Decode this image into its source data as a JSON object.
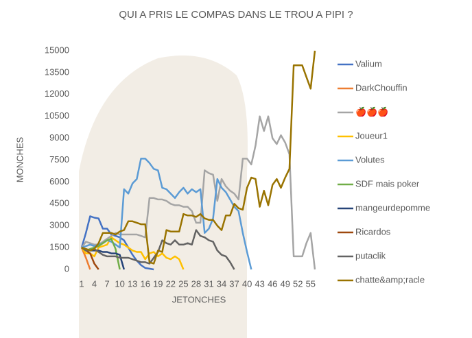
{
  "chart_data": {
    "type": "line",
    "title": "QUI A PRIS LE COMPAS DANS LE TROU A PIPI ?",
    "x_label": "JETONCHES",
    "y_label": "MONCHES",
    "categories": [
      "1",
      null,
      null,
      "4",
      null,
      null,
      "7",
      null,
      null,
      "10",
      null,
      null,
      "13",
      null,
      null,
      "16",
      null,
      null,
      "19",
      null,
      null,
      "22",
      null,
      null,
      "25",
      null,
      null,
      "28",
      null,
      null,
      "31",
      null,
      null,
      "34",
      null,
      null,
      "37",
      null,
      null,
      "40",
      null,
      null,
      "43",
      null,
      null,
      "46",
      null,
      null,
      "49",
      null,
      null,
      "52",
      null,
      null,
      "55",
      null
    ],
    "ylim": [
      0,
      15000
    ],
    "yticks": [
      0,
      1500,
      3000,
      4500,
      6000,
      7500,
      9000,
      10500,
      12000,
      13500,
      15000
    ],
    "grid": false,
    "legend": "right",
    "series": [
      {
        "name": "Valium",
        "color": "#4472c4",
        "values": [
          1500,
          2500,
          3650,
          3550,
          3500,
          2800,
          2800,
          2400,
          2300,
          2200,
          2000,
          1500,
          1000,
          600,
          300,
          100,
          50,
          0,
          null,
          null,
          null,
          null,
          null,
          null,
          null,
          null,
          null,
          null,
          null,
          null,
          null,
          null,
          null,
          null,
          null,
          null,
          null,
          null,
          null,
          null,
          null,
          null,
          null,
          null,
          null,
          null,
          null,
          null,
          null,
          null,
          null,
          null,
          null,
          null,
          null,
          null
        ]
      },
      {
        "name": "DarkChouffin",
        "color": "#ed7d31",
        "values": [
          1500,
          800,
          0,
          null,
          null,
          null,
          null,
          null,
          null,
          null,
          null,
          null,
          null,
          null,
          null,
          null,
          null,
          null,
          null,
          null,
          null,
          null,
          null,
          null,
          null,
          null,
          null,
          null,
          null,
          null,
          null,
          null,
          null,
          null,
          null,
          null,
          null,
          null,
          null,
          null,
          null,
          null,
          null,
          null,
          null,
          null,
          null,
          null,
          null,
          null,
          null,
          null,
          null,
          null,
          null,
          null
        ]
      },
      {
        "name": "🍎🍎🍎",
        "color": "#a5a5a5",
        "values": [
          1500,
          1900,
          1800,
          1700,
          1700,
          1900,
          2100,
          2300,
          2500,
          2400,
          2400,
          2400,
          2400,
          2400,
          2300,
          2200,
          4900,
          4900,
          4800,
          4800,
          4700,
          4500,
          4400,
          4400,
          4300,
          4300,
          4000,
          3200,
          3200,
          6800,
          6600,
          6500,
          4700,
          6200,
          5700,
          5400,
          5200,
          4800,
          7600,
          7600,
          7200,
          8500,
          10500,
          9500,
          10500,
          9000,
          8600,
          9200,
          8700,
          7900,
          900,
          900,
          900,
          1800,
          2500,
          0
        ]
      },
      {
        "name": "Joueur1",
        "color": "#ffc000",
        "values": [
          1500,
          1100,
          1100,
          900,
          1500,
          1600,
          1700,
          2200,
          2000,
          1800,
          1700,
          1500,
          1300,
          1200,
          1200,
          700,
          1100,
          1200,
          900,
          1100,
          800,
          700,
          900,
          700,
          0,
          null,
          null,
          null,
          null,
          null,
          null,
          null,
          null,
          null,
          null,
          null,
          null,
          null,
          null,
          null,
          null,
          null,
          null,
          null,
          null,
          null,
          null,
          null,
          null,
          null,
          null,
          null,
          null,
          null,
          null,
          null
        ]
      },
      {
        "name": "Volutes",
        "color": "#5b9bd5",
        "values": [
          1500,
          1600,
          1700,
          1600,
          1700,
          1800,
          2000,
          1900,
          1700,
          1500,
          5500,
          5200,
          5900,
          6200,
          7600,
          7600,
          7300,
          6900,
          6800,
          5600,
          5500,
          5200,
          4900,
          5300,
          5600,
          5200,
          5500,
          5300,
          5500,
          2500,
          2800,
          3500,
          6200,
          5600,
          5300,
          4800,
          4300,
          4000,
          2500,
          1200,
          0,
          null,
          null,
          null,
          null,
          null,
          null,
          null,
          null,
          null,
          null,
          null,
          null,
          null,
          null,
          null
        ]
      },
      {
        "name": "SDF mais poker",
        "color": "#70ad47",
        "values": [
          1500,
          1300,
          1400,
          1500,
          1600,
          1800,
          2000,
          2100,
          1400,
          0,
          null,
          null,
          null,
          null,
          null,
          null,
          null,
          null,
          null,
          null,
          null,
          null,
          null,
          null,
          null,
          null,
          null,
          null,
          null,
          null,
          null,
          null,
          null,
          null,
          null,
          null,
          null,
          null,
          null,
          null,
          null,
          null,
          null,
          null,
          null,
          null,
          null,
          null,
          null,
          null,
          null,
          null,
          null,
          null,
          null,
          null
        ]
      },
      {
        "name": "mangeurdepomme",
        "color": "#264478",
        "values": [
          1500,
          1400,
          1300,
          1300,
          1300,
          1200,
          1200,
          1100,
          1100,
          1000,
          0,
          null,
          null,
          null,
          null,
          null,
          null,
          null,
          null,
          null,
          null,
          null,
          null,
          null,
          null,
          null,
          null,
          null,
          null,
          null,
          null,
          null,
          null,
          null,
          null,
          null,
          null,
          null,
          null,
          null,
          null,
          null,
          null,
          null,
          null,
          null,
          null,
          null,
          null,
          null,
          null,
          null,
          null,
          null,
          null,
          null
        ]
      },
      {
        "name": "Ricardos",
        "color": "#9e480e",
        "values": [
          1500,
          1300,
          1100,
          400,
          0,
          null,
          null,
          null,
          null,
          null,
          null,
          null,
          null,
          null,
          null,
          null,
          null,
          null,
          null,
          null,
          null,
          null,
          null,
          null,
          null,
          null,
          null,
          null,
          null,
          null,
          null,
          null,
          null,
          null,
          null,
          null,
          null,
          null,
          null,
          null,
          null,
          null,
          null,
          null,
          null,
          null,
          null,
          null,
          null,
          null,
          null,
          null,
          null,
          null,
          null,
          null
        ]
      },
      {
        "name": "putaclik",
        "color": "#636363",
        "values": [
          1500,
          1300,
          1300,
          1400,
          1200,
          1000,
          900,
          900,
          900,
          800,
          800,
          800,
          700,
          600,
          500,
          500,
          400,
          800,
          1200,
          2000,
          1800,
          1700,
          2000,
          1700,
          1700,
          1800,
          1700,
          2700,
          2300,
          2200,
          2000,
          1900,
          1300,
          1000,
          900,
          500,
          0,
          null,
          null,
          null,
          null,
          null,
          null,
          null,
          null,
          null,
          null,
          null,
          null,
          null,
          null,
          null,
          null,
          null,
          null,
          null
        ]
      },
      {
        "name": "chatte&amp;racle",
        "color": "#997300",
        "values": [
          1500,
          1400,
          1300,
          1400,
          1800,
          2500,
          2500,
          2500,
          2400,
          2600,
          2700,
          3300,
          3300,
          3200,
          3100,
          3100,
          500,
          400,
          1300,
          1200,
          2700,
          2600,
          2600,
          2600,
          3800,
          3700,
          3700,
          3600,
          3800,
          3500,
          3400,
          3400,
          3000,
          2700,
          3700,
          3700,
          4500,
          4200,
          4100,
          5600,
          6300,
          6200,
          4300,
          5400,
          4400,
          5800,
          6200,
          5600,
          6300,
          6900,
          14000,
          14000,
          14000,
          13200,
          12400,
          15000
        ]
      }
    ]
  }
}
